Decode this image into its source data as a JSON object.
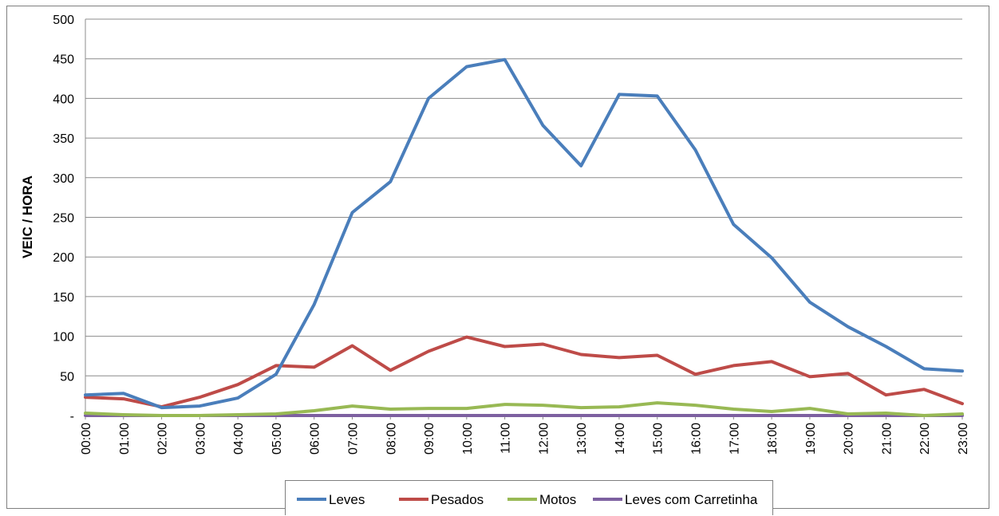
{
  "chart_data": {
    "type": "line",
    "title": "",
    "xlabel": "",
    "ylabel": "VEIC / HORA",
    "ylim": [
      0,
      500
    ],
    "yticks": [
      0,
      50,
      100,
      150,
      200,
      250,
      300,
      350,
      400,
      450,
      500
    ],
    "ytick_labels": [
      "-",
      "50",
      "100",
      "150",
      "200",
      "250",
      "300",
      "350",
      "400",
      "450",
      "500"
    ],
    "grid": true,
    "legend_position": "bottom",
    "categories": [
      "00:00",
      "01:00",
      "02:00",
      "03:00",
      "04:00",
      "05:00",
      "06:00",
      "07:00",
      "08:00",
      "09:00",
      "10:00",
      "11:00",
      "12:00",
      "13:00",
      "14:00",
      "15:00",
      "16:00",
      "17:00",
      "18:00",
      "19:00",
      "20:00",
      "21:00",
      "22:00",
      "23:00"
    ],
    "series": [
      {
        "name": "Leves",
        "color": "#4a7ebb",
        "values": [
          26,
          28,
          10,
          12,
          22,
          52,
          140,
          256,
          295,
          400,
          440,
          449,
          366,
          315,
          405,
          403,
          335,
          241,
          199,
          143,
          112,
          87,
          59,
          56
        ]
      },
      {
        "name": "Pesados",
        "color": "#be4b48",
        "values": [
          23,
          21,
          11,
          23,
          39,
          63,
          61,
          88,
          57,
          81,
          99,
          87,
          90,
          77,
          73,
          76,
          52,
          63,
          68,
          49,
          53,
          26,
          33,
          15
        ]
      },
      {
        "name": "Motos",
        "color": "#98b954",
        "values": [
          3,
          1,
          0,
          0,
          1,
          2,
          6,
          12,
          8,
          9,
          9,
          14,
          13,
          10,
          11,
          16,
          13,
          8,
          5,
          9,
          2,
          3,
          0,
          2
        ]
      },
      {
        "name": "Leves com Carretinha",
        "color": "#7d60a0",
        "values": [
          0,
          0,
          0,
          0,
          0,
          0,
          0,
          0,
          0,
          0,
          0,
          0,
          0,
          0,
          0,
          0,
          0,
          0,
          0,
          0,
          0,
          0,
          0,
          0
        ]
      }
    ]
  }
}
